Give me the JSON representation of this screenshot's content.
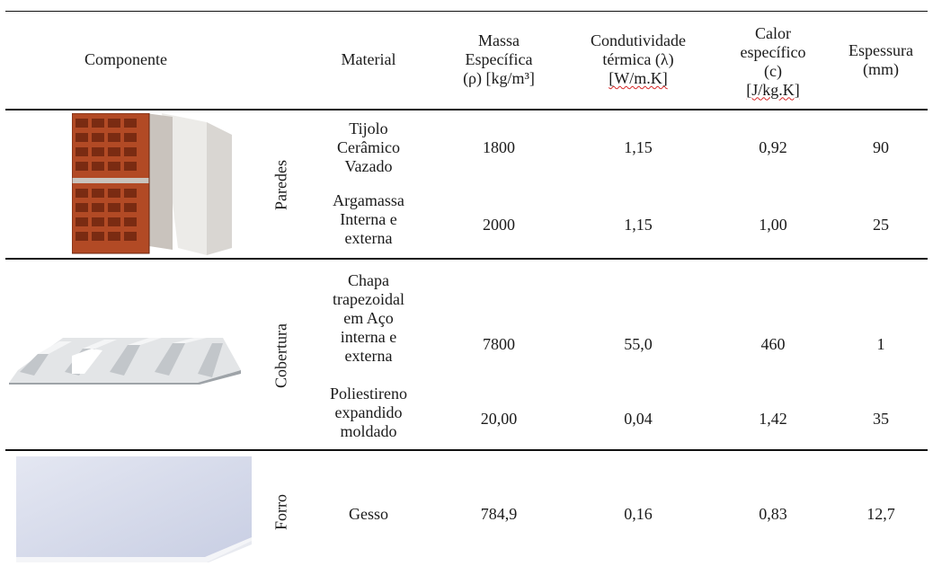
{
  "table": {
    "headers": {
      "componente": "Componente",
      "material": "Material",
      "massa": "Massa\nEspecífica\n(ρ) [kg/m³]",
      "condutividade_l1": "Condutividade",
      "condutividade_l2": "térmica (λ)",
      "condutividade_unit": "[W/m.K]",
      "calor_l1": "Calor",
      "calor_l2": "específico",
      "calor_l3": "(c)",
      "calor_unit": "[J/kg.K]",
      "espessura": "Espessura\n(mm)"
    },
    "groups": {
      "paredes": {
        "label": "Paredes",
        "image_icon": "brick-wall-illustration",
        "rows": [
          {
            "material": "Tijolo\nCerâmico\nVazado",
            "massa": "1800",
            "condutividade": "1,15",
            "calor": "0,92",
            "espessura": "90"
          },
          {
            "material": "Argamassa\nInterna e\nexterna",
            "massa": "2000",
            "condutividade": "1,15",
            "calor": "1,00",
            "espessura": "25"
          }
        ]
      },
      "cobertura": {
        "label": "Cobertura",
        "image_icon": "trapezoidal-roof-sheet-illustration",
        "rows": [
          {
            "material": "Chapa\ntrapezoidal\nem Aço\ninterna e\nexterna",
            "massa": "7800",
            "condutividade": "55,0",
            "calor": "460",
            "espessura": "1"
          },
          {
            "material": "Poliestireno\nexpandido\nmoldado",
            "massa": "20,00",
            "condutividade": "0,04",
            "calor": "1,42",
            "espessura": "35"
          }
        ]
      },
      "forro": {
        "label": "Forro",
        "image_icon": "gypsum-board-illustration",
        "rows": [
          {
            "material": "Gesso",
            "massa": "784,9",
            "condutividade": "0,16",
            "calor": "0,83",
            "espessura": "12,7"
          }
        ]
      }
    }
  },
  "colors": {
    "brick": "#b24a25",
    "mortar": "#c9c3bd",
    "plaster": "#e9e7e4",
    "steel": "#d7d9db",
    "gypsum": "#d3d8ea"
  }
}
